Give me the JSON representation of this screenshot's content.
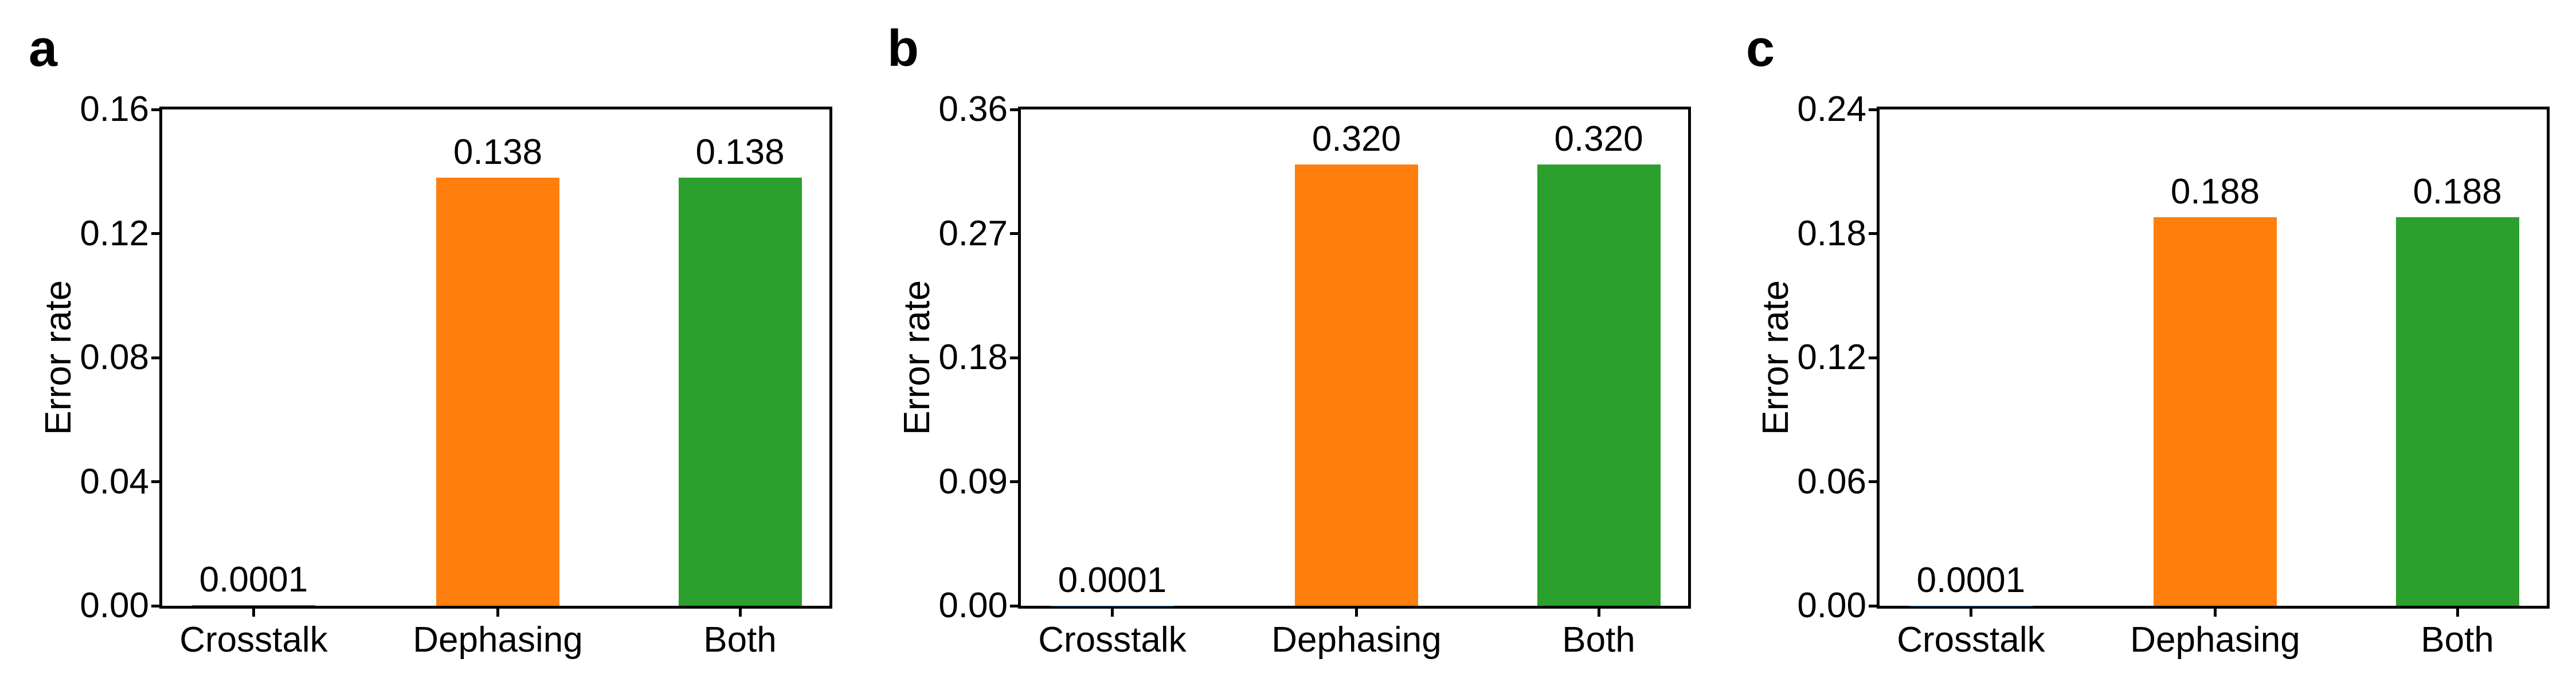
{
  "figure": {
    "background_color": "#ffffff",
    "axis_color": "#000000",
    "text_color": "#000000",
    "y_axis_title": "Error rate",
    "panel_labels": [
      "a",
      "b",
      "c"
    ],
    "categories": [
      "Crosstalk",
      "Dephasing",
      "Both"
    ],
    "bar_colors": [
      "#1f77b4",
      "#ff7f0e",
      "#2ca02c"
    ]
  },
  "chart_data": [
    {
      "type": "bar",
      "panel_label": "a",
      "title": "",
      "xlabel": "",
      "ylabel": "Error rate",
      "categories": [
        "Crosstalk",
        "Dephasing",
        "Both"
      ],
      "values": [
        0.0001,
        0.138,
        0.138
      ],
      "bar_value_labels": [
        "0.0001",
        "0.138",
        "0.138"
      ],
      "bar_colors": [
        "#1f77b4",
        "#ff7f0e",
        "#2ca02c"
      ],
      "ylim": [
        0,
        0.16
      ],
      "yticks": [
        0,
        0.04,
        0.08,
        0.12,
        0.16
      ],
      "ytick_labels": [
        "0.00",
        "0.04",
        "0.08",
        "0.12",
        "0.16"
      ],
      "grid": false,
      "legend": false
    },
    {
      "type": "bar",
      "panel_label": "b",
      "title": "",
      "xlabel": "",
      "ylabel": "Error rate",
      "categories": [
        "Crosstalk",
        "Dephasing",
        "Both"
      ],
      "values": [
        0.0001,
        0.32,
        0.32
      ],
      "bar_value_labels": [
        "0.0001",
        "0.320",
        "0.320"
      ],
      "bar_colors": [
        "#1f77b4",
        "#ff7f0e",
        "#2ca02c"
      ],
      "ylim": [
        0,
        0.36
      ],
      "yticks": [
        0,
        0.09,
        0.18,
        0.27,
        0.36
      ],
      "ytick_labels": [
        "0.00",
        "0.09",
        "0.18",
        "0.27",
        "0.36"
      ],
      "grid": false,
      "legend": false
    },
    {
      "type": "bar",
      "panel_label": "c",
      "title": "",
      "xlabel": "",
      "ylabel": "Error rate",
      "categories": [
        "Crosstalk",
        "Dephasing",
        "Both"
      ],
      "values": [
        0.0001,
        0.188,
        0.188
      ],
      "bar_value_labels": [
        "0.0001",
        "0.188",
        "0.188"
      ],
      "bar_colors": [
        "#1f77b4",
        "#ff7f0e",
        "#2ca02c"
      ],
      "ylim": [
        0,
        0.24
      ],
      "yticks": [
        0,
        0.06,
        0.12,
        0.18,
        0.24
      ],
      "ytick_labels": [
        "0.00",
        "0.06",
        "0.12",
        "0.18",
        "0.24"
      ],
      "grid": false,
      "legend": false
    }
  ]
}
